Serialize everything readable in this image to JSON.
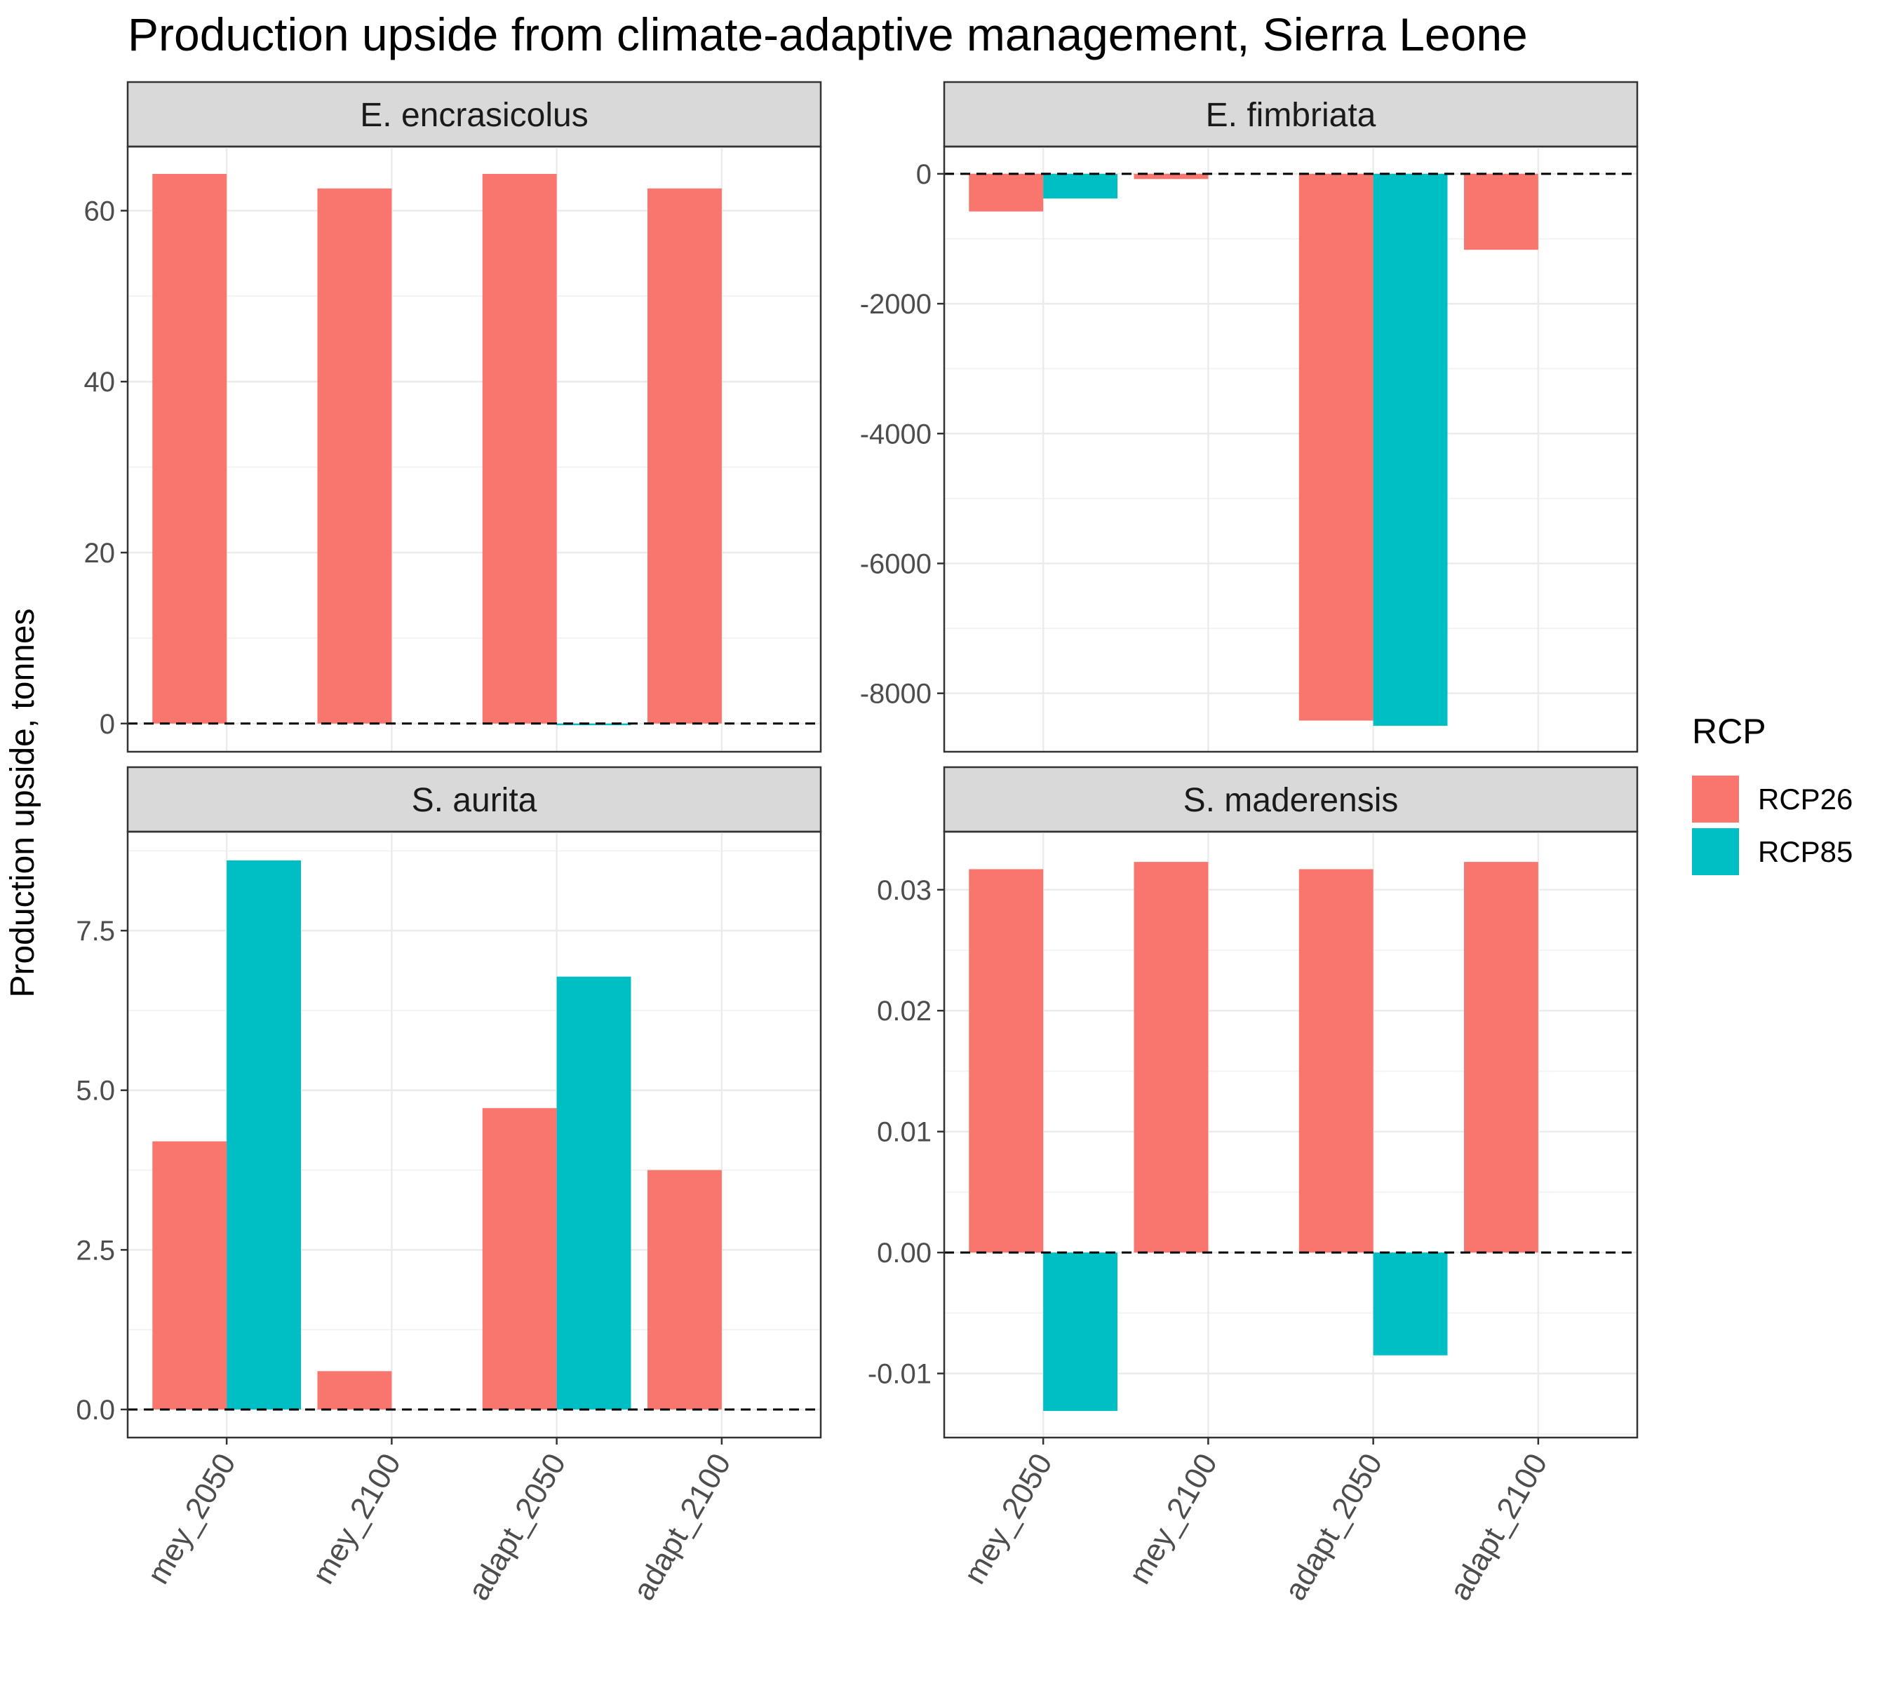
{
  "chart_data": {
    "type": "bar",
    "title": "Production upside from climate-adaptive management, Sierra Leone",
    "ylabel": "Production upside, tonnes",
    "xlabel": "",
    "categories": [
      "mey_2050",
      "mey_2100",
      "adapt_2050",
      "adapt_2100"
    ],
    "legend": {
      "title": "RCP",
      "position": "right",
      "entries": [
        {
          "name": "RCP26",
          "color": "#F8766D"
        },
        {
          "name": "RCP85",
          "color": "#00BFC4"
        }
      ]
    },
    "grid": true,
    "reference_line": 0,
    "panels": [
      {
        "name": "E. encrasicolus",
        "ylim": [
          -3.3,
          67.5
        ],
        "yticks": [
          0,
          20,
          40,
          60
        ],
        "tick_labels": [
          "0",
          "20",
          "40",
          "60"
        ],
        "series": [
          {
            "name": "RCP26",
            "values": [
              64.3,
              62.6,
              64.3,
              62.6
            ]
          },
          {
            "name": "RCP85",
            "values": [
              null,
              null,
              -0.2,
              null
            ]
          }
        ]
      },
      {
        "name": "E. fimbriata",
        "ylim": [
          -8900,
          420
        ],
        "yticks": [
          0,
          -2000,
          -4000,
          -6000,
          -8000
        ],
        "tick_labels": [
          "0",
          "-2000",
          "-4000",
          "-6000",
          "-8000"
        ],
        "series": [
          {
            "name": "RCP26",
            "values": [
              -580,
              -80,
              -8420,
              -1170
            ]
          },
          {
            "name": "RCP85",
            "values": [
              -380,
              null,
              -8500,
              null
            ]
          }
        ]
      },
      {
        "name": "S. aurita",
        "ylim": [
          -0.44,
          9.05
        ],
        "yticks": [
          0,
          2.5,
          5,
          7.5
        ],
        "tick_labels": [
          "0.0",
          "2.5",
          "5.0",
          "7.5"
        ],
        "series": [
          {
            "name": "RCP26",
            "values": [
              4.2,
              0.6,
              4.72,
              3.75
            ]
          },
          {
            "name": "RCP85",
            "values": [
              8.6,
              null,
              6.78,
              null
            ]
          }
        ]
      },
      {
        "name": "S. maderensis",
        "ylim": [
          -0.0153,
          0.0348
        ],
        "yticks": [
          -0.01,
          0,
          0.01,
          0.02,
          0.03
        ],
        "tick_labels": [
          "-0.01",
          "0.00",
          "0.01",
          "0.02",
          "0.03"
        ],
        "series": [
          {
            "name": "RCP26",
            "values": [
              0.0317,
              0.0323,
              0.0317,
              0.0323
            ]
          },
          {
            "name": "RCP85",
            "values": [
              -0.0131,
              null,
              -0.0085,
              null
            ]
          }
        ]
      }
    ]
  }
}
